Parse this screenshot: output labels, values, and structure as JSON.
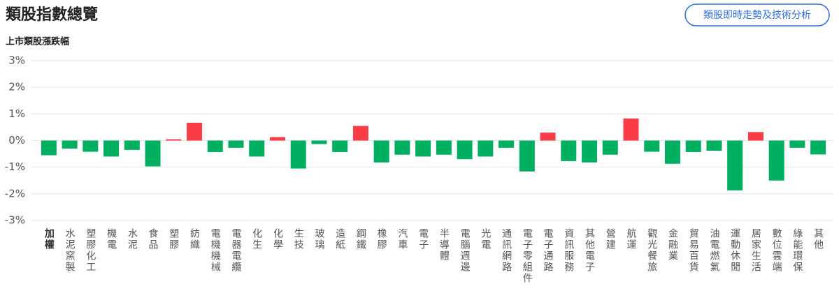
{
  "header": {
    "title": "類股指數總覽",
    "button": "類股即時走勢及技術分析"
  },
  "chart_data": {
    "type": "bar",
    "title": "上市類股漲跌幅",
    "categories": [
      "加權",
      "水泥窯製",
      "塑膠化工",
      "機電",
      "水泥",
      "食品",
      "塑膠",
      "紡織",
      "電機機械",
      "電器電纜",
      "化生",
      "化學",
      "生技",
      "玻璃",
      "造紙",
      "鋼鐵",
      "橡膠",
      "汽車",
      "電子",
      "半導體",
      "電腦週邊",
      "光電",
      "通訊網路",
      "電子零組件",
      "電子通路",
      "資訊服務",
      "其他電子",
      "營建",
      "航運",
      "觀光餐旅",
      "金融業",
      "貿易百貨",
      "油電燃氣",
      "運動休閒",
      "居家生活",
      "數位雲端",
      "綠能環保",
      "其他"
    ],
    "values": [
      -0.55,
      -0.3,
      -0.42,
      -0.6,
      -0.35,
      -0.97,
      0.05,
      0.67,
      -0.43,
      -0.27,
      -0.6,
      0.13,
      -1.05,
      -0.13,
      -0.43,
      0.55,
      -0.82,
      -0.53,
      -0.6,
      -0.53,
      -0.7,
      -0.6,
      -0.27,
      -1.16,
      0.3,
      -0.77,
      -0.82,
      -0.53,
      0.83,
      -0.42,
      -0.87,
      -0.43,
      -0.38,
      -1.87,
      0.32,
      -1.5,
      -0.27,
      -0.52
    ],
    "colors": {
      "up": "#fa3c46",
      "down": "#00b060"
    },
    "ylim": [
      -3,
      3
    ],
    "yticks": [
      {
        "value": 3,
        "label": "3%"
      },
      {
        "value": 2,
        "label": "2%"
      },
      {
        "value": 1,
        "label": "1%"
      },
      {
        "value": 0,
        "label": "0%"
      },
      {
        "value": -1,
        "label": "-1%"
      },
      {
        "value": -2,
        "label": "-2%"
      },
      {
        "value": -3,
        "label": "-3%"
      }
    ],
    "grid": true
  }
}
